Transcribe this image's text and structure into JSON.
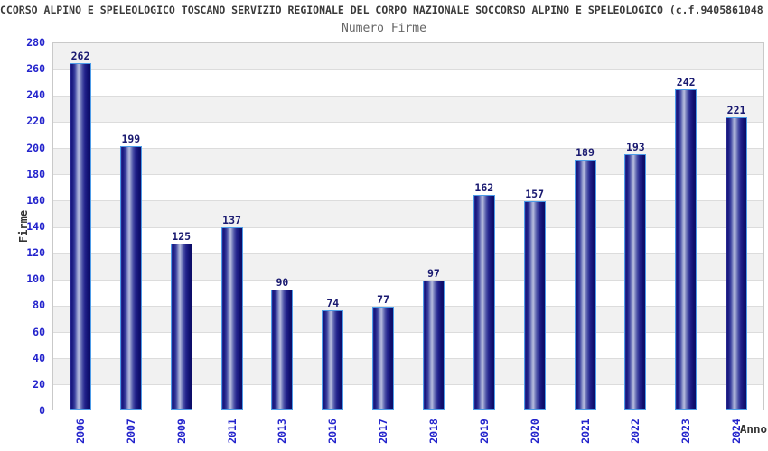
{
  "header": {
    "title": "CCORSO ALPINO E SPELEOLOGICO TOSCANO SERVIZIO REGIONALE DEL CORPO NAZIONALE SOCCORSO ALPINO E SPELEOLOGICO (c.f.9405861048",
    "subtitle": "Numero Firme"
  },
  "chart_data": {
    "type": "bar",
    "title": "Numero Firme",
    "categories": [
      "2006",
      "2007",
      "2009",
      "2011",
      "2013",
      "2016",
      "2017",
      "2018",
      "2019",
      "2020",
      "2021",
      "2022",
      "2023",
      "2024"
    ],
    "values": [
      262,
      199,
      125,
      137,
      90,
      74,
      77,
      97,
      162,
      157,
      189,
      193,
      242,
      221
    ],
    "xlabel": "Anno",
    "ylabel": "Firme",
    "ylim": [
      0,
      280
    ],
    "ytick_step": 20,
    "grid": "horizontal-bands-alternating",
    "legend": "none",
    "colors": {
      "bar_edge": "#4d9ce8",
      "bar_dark": "#0c0c66",
      "bar_highlight": "#b7bcde",
      "tick_labels": "#2323cc",
      "value_labels": "#191970",
      "axis_titles": "#333333",
      "band_gray": "#f1f1f1",
      "gridline": "#dcdcdc",
      "title_text": "#3a3a3a",
      "subtitle_text": "#666666"
    }
  }
}
